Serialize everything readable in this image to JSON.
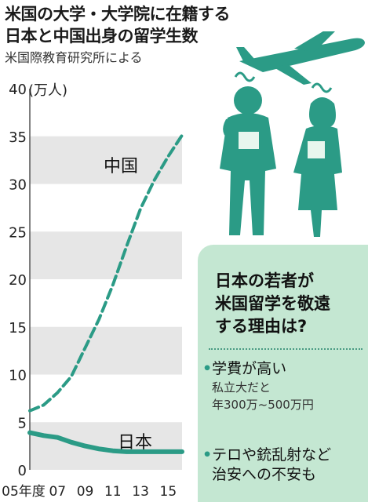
{
  "title_lines": [
    "米国の大学・大学院に在籍する",
    "日本と中国出身の留学生数"
  ],
  "source": "米国際教育研究所による",
  "chart_data": {
    "type": "line",
    "unit": "(万人)",
    "ylim": [
      0,
      40
    ],
    "yticks": [
      0,
      5,
      10,
      15,
      20,
      25,
      30,
      35,
      40
    ],
    "xlim": [
      2005,
      2016
    ],
    "xticks": [
      {
        "x": 2005,
        "label": "05年度"
      },
      {
        "x": 2007,
        "label": "07"
      },
      {
        "x": 2009,
        "label": "09"
      },
      {
        "x": 2011,
        "label": "11"
      },
      {
        "x": 2013,
        "label": "13"
      },
      {
        "x": 2015,
        "label": "15"
      }
    ],
    "series": [
      {
        "name": "中国",
        "color": "#2b9b86",
        "dashed": true,
        "x": [
          2005,
          2006,
          2007,
          2008,
          2009,
          2010,
          2011,
          2012,
          2013,
          2014,
          2015,
          2016
        ],
        "values": [
          6.2,
          6.8,
          8.1,
          9.8,
          12.8,
          15.8,
          19.4,
          23.5,
          27.4,
          30.4,
          32.9,
          35.1
        ]
      },
      {
        "name": "日本",
        "color": "#2b9b86",
        "dashed": false,
        "x": [
          2005,
          2006,
          2007,
          2008,
          2009,
          2010,
          2011,
          2012,
          2013,
          2014,
          2015,
          2016
        ],
        "values": [
          3.9,
          3.6,
          3.4,
          2.9,
          2.5,
          2.2,
          2.0,
          1.9,
          1.9,
          1.9,
          1.9,
          1.9
        ]
      }
    ]
  },
  "panel": {
    "heading_lines": [
      "日本の若者が",
      "米国留学を敬遠",
      "する理由は?"
    ],
    "reasons": [
      {
        "bullet": "•",
        "lines": [
          "学費が高い"
        ],
        "sub": [
          "私立大だと",
          "年300万~500万円"
        ]
      },
      {
        "bullet": "•",
        "lines": [
          "テロや銃乱射など",
          "治安への不安も"
        ],
        "sub": []
      }
    ]
  },
  "colors": {
    "accent": "#2b9b86",
    "band": "#e6e6e6",
    "panel": "#c4e7d2",
    "figure": "#2b9b86"
  },
  "icons": [
    "airplane-icon",
    "person-icon",
    "worry-icon"
  ]
}
